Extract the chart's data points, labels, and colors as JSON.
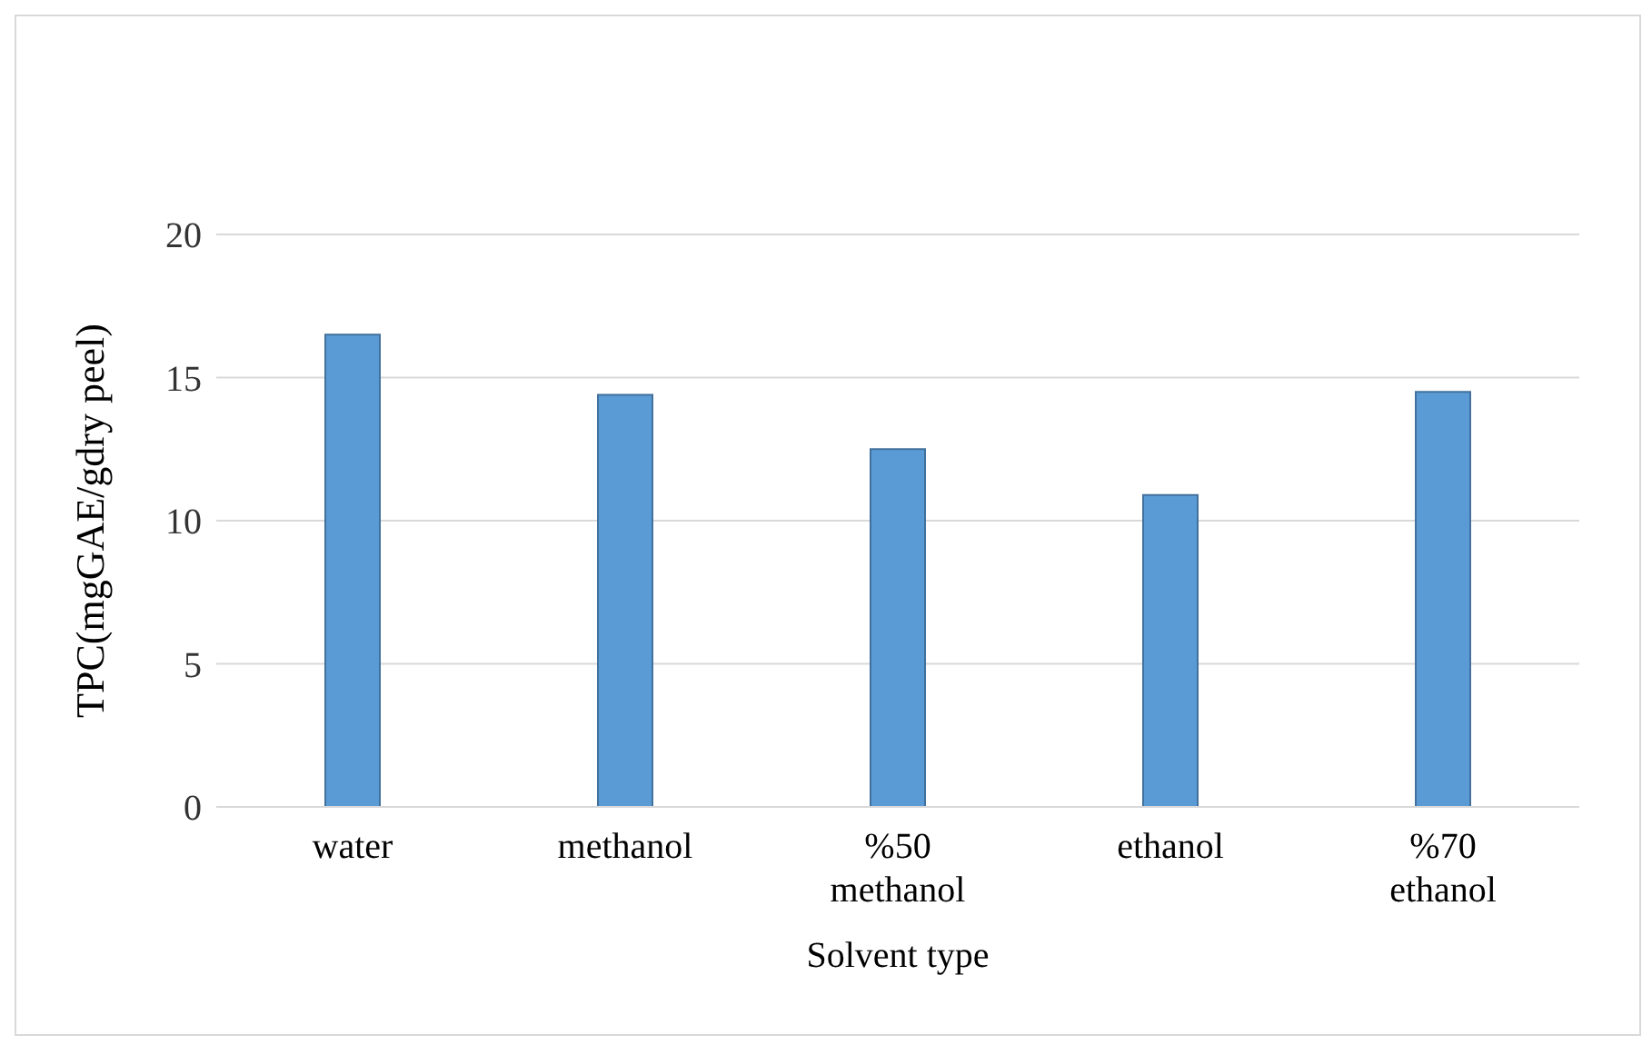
{
  "chart_data": {
    "type": "bar",
    "xlabel": "Solvent type",
    "ylabel": "TPC(mgGAE/gdry peel)",
    "categories": [
      "water",
      "methanol",
      "%50 methanol",
      "ethanol",
      "%70 ethanol"
    ],
    "values": [
      16.5,
      14.4,
      12.5,
      10.9,
      14.5
    ],
    "color": "#5b9bd5",
    "ylim": [
      0,
      20
    ],
    "yticks": [
      0,
      5,
      10,
      15,
      20
    ],
    "grid": "y"
  }
}
